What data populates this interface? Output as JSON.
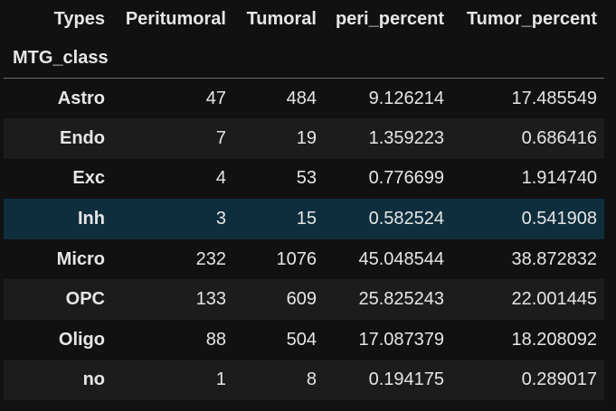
{
  "table": {
    "columns_label": "Types",
    "index_name": "MTG_class",
    "columns": [
      "Peritumoral",
      "Tumoral",
      "peri_percent",
      "Tumor_percent"
    ],
    "rows": [
      {
        "index": "Astro",
        "values": [
          "47",
          "484",
          "9.126214",
          "17.485549"
        ]
      },
      {
        "index": "Endo",
        "values": [
          "7",
          "19",
          "1.359223",
          "0.686416"
        ]
      },
      {
        "index": "Exc",
        "values": [
          "4",
          "53",
          "0.776699",
          "1.914740"
        ]
      },
      {
        "index": "Inh",
        "values": [
          "3",
          "15",
          "0.582524",
          "0.541908"
        ]
      },
      {
        "index": "Micro",
        "values": [
          "232",
          "1076",
          "45.048544",
          "38.872832"
        ]
      },
      {
        "index": "OPC",
        "values": [
          "133",
          "609",
          "25.825243",
          "22.001445"
        ]
      },
      {
        "index": "Oligo",
        "values": [
          "88",
          "504",
          "17.087379",
          "18.208092"
        ]
      },
      {
        "index": "no",
        "values": [
          "1",
          "8",
          "0.194175",
          "0.289017"
        ]
      }
    ]
  },
  "colors": {
    "background": "#111111",
    "stripe": "#1c1c1c",
    "hover_row": "#0e2e3e",
    "text": "#e6e6e6"
  }
}
